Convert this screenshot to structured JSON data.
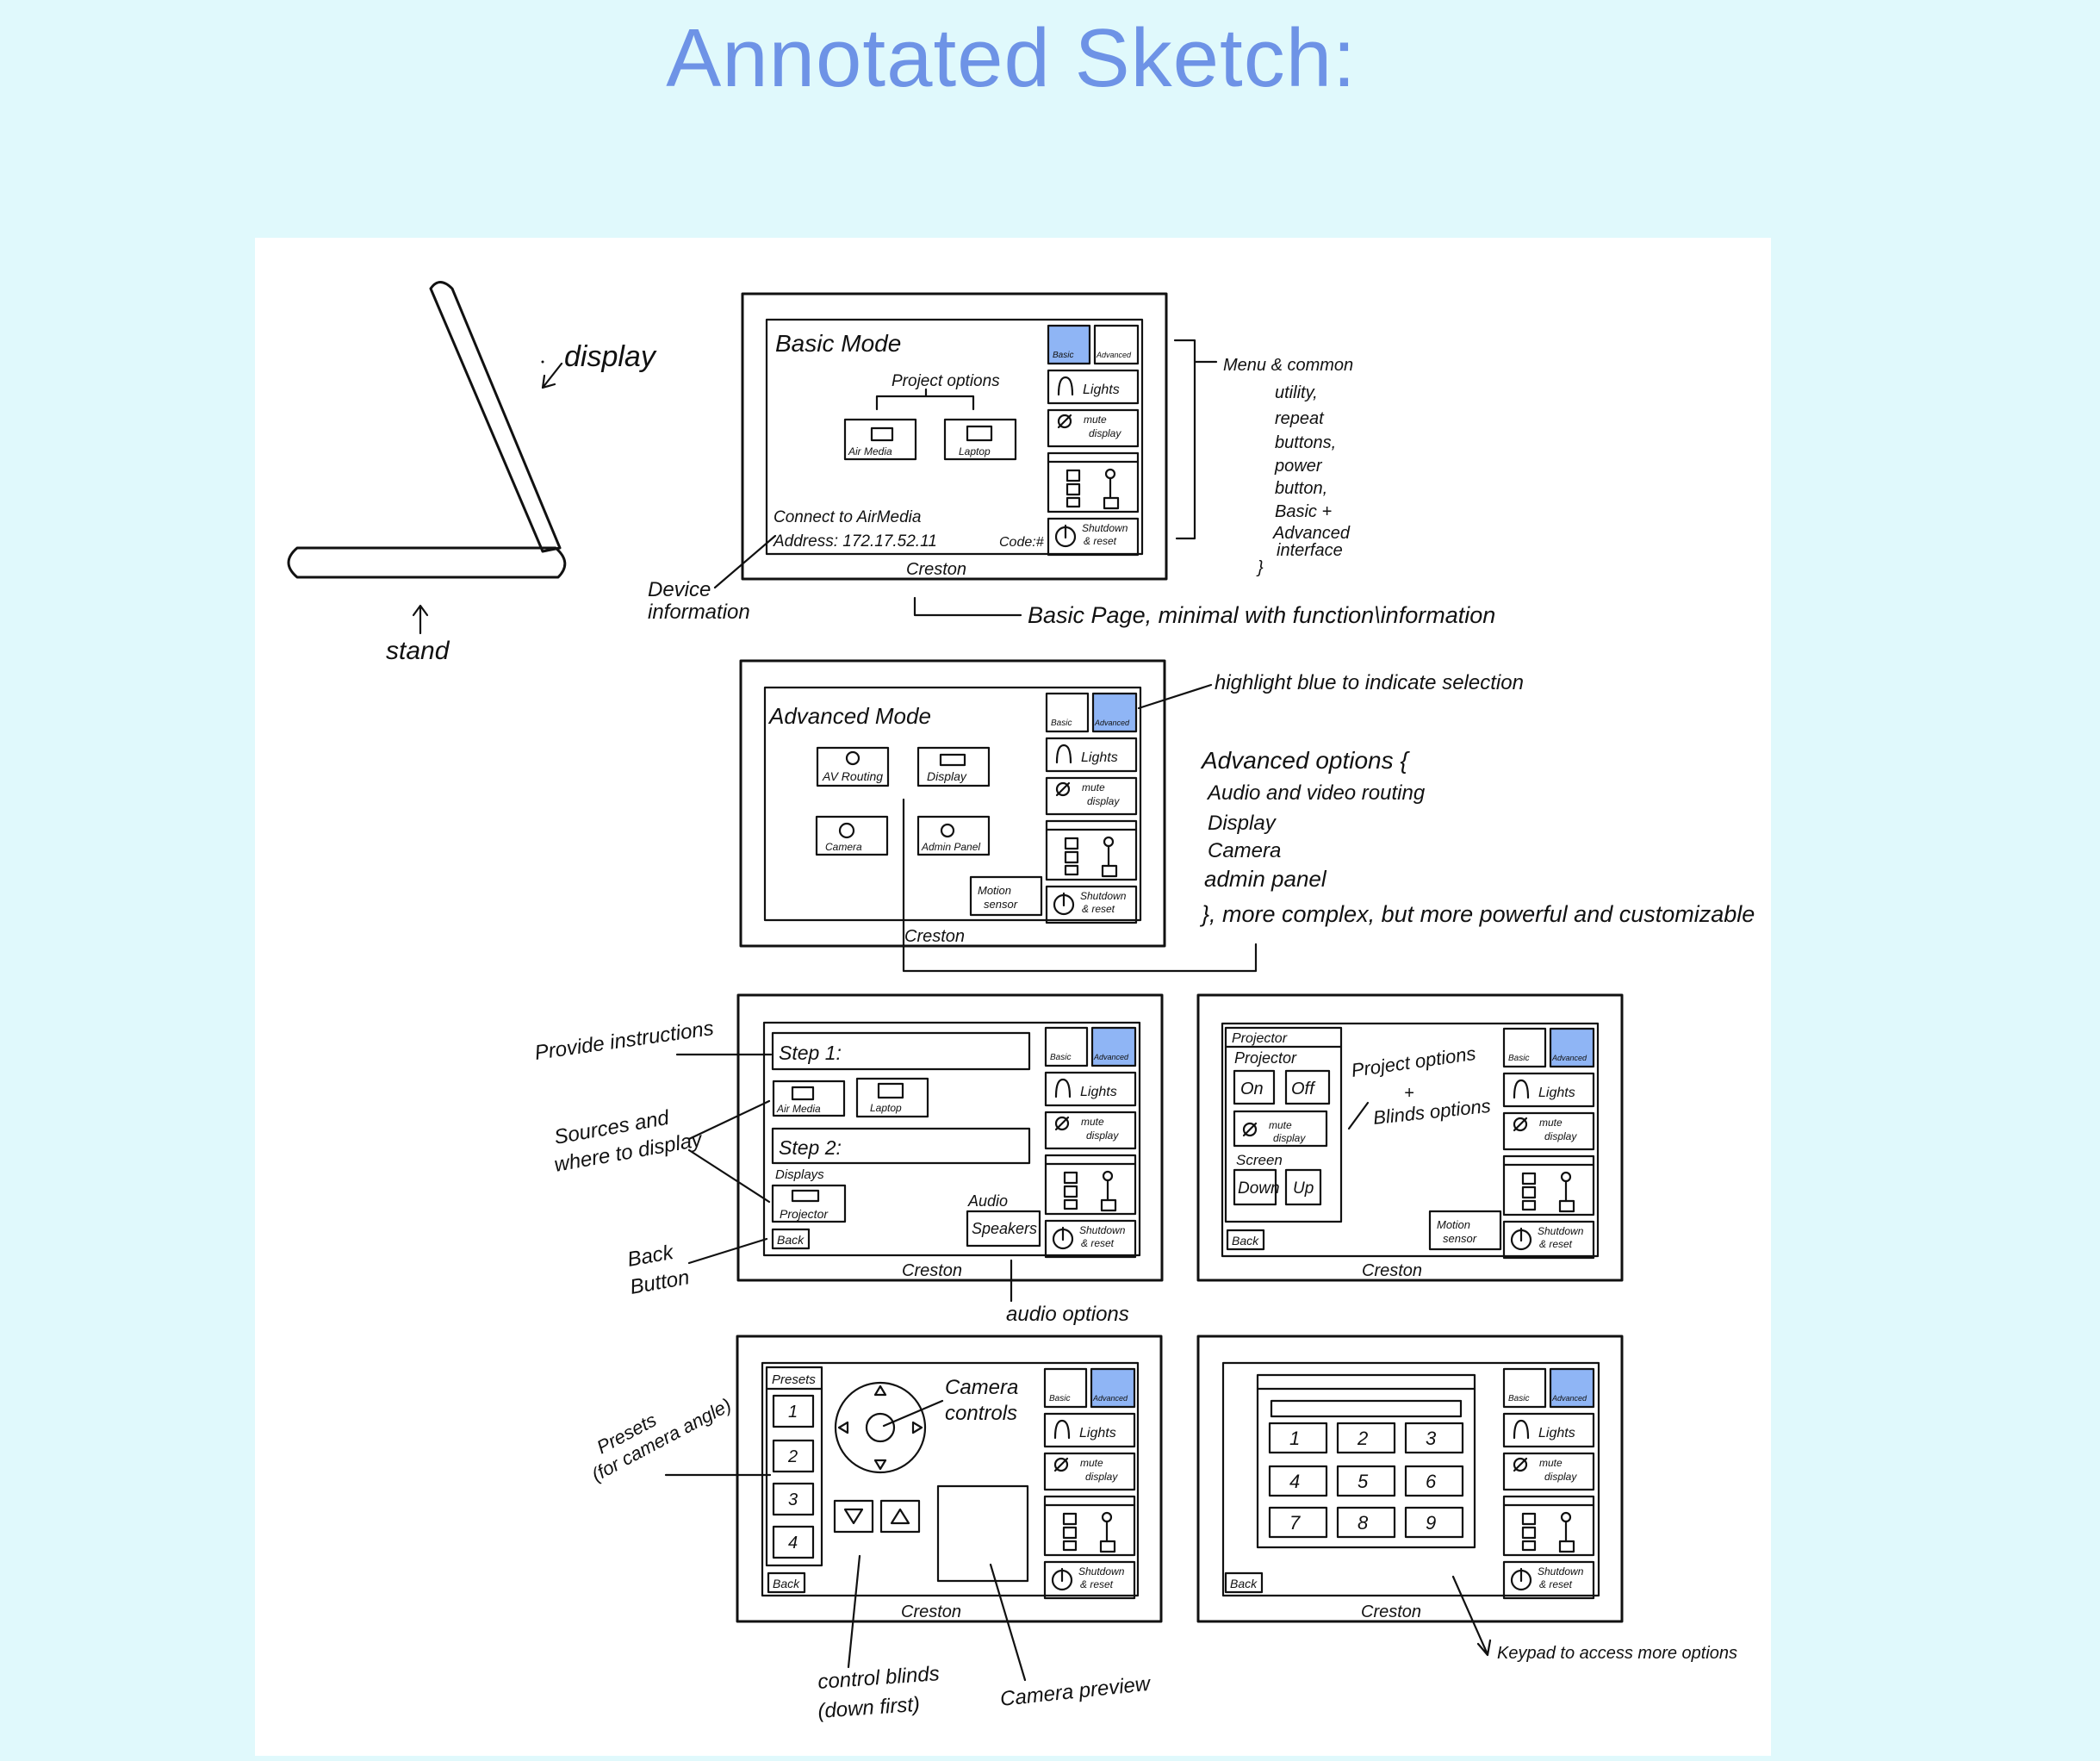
{
  "title": "Annotated Sketch:",
  "colors": {
    "background": "#e0f9fc",
    "title": "#6e93e6",
    "highlight": "#8fb5f5"
  },
  "stand_sketch": {
    "display": "display",
    "stand": "stand"
  },
  "common": {
    "basic": "Basic",
    "advanced": "Advanced",
    "lights": "Lights",
    "mute_display_1": "mute",
    "mute_display_2": "display",
    "shutdown_1": "Shutdown",
    "shutdown_2": "& reset",
    "brand": "Creston",
    "back": "Back",
    "motion_1": "Motion",
    "motion_2": "sensor"
  },
  "basic_mode": {
    "title": "Basic Mode",
    "project_options": "Project options",
    "airmedia": "Air Media",
    "laptop": "Laptop",
    "connect": "Connect to AirMedia",
    "address": "Address: 172.17.52.11",
    "code": "Code:#"
  },
  "advanced_mode": {
    "title": "Advanced Mode",
    "av_routing": "AV Routing",
    "display": "Display",
    "camera": "Camera",
    "admin_panel": "Admin Panel"
  },
  "routing_screen": {
    "step1": "Step 1:",
    "step2": "Step 2:",
    "displays": "Displays",
    "projector": "Projector",
    "audio": "Audio",
    "speakers": "Speakers"
  },
  "display_screen": {
    "projector_tab": "Projector",
    "projector": "Projector",
    "on": "On",
    "off": "Off",
    "screen": "Screen",
    "down": "Down",
    "up": "Up"
  },
  "camera_screen": {
    "presets": "Presets",
    "preset_numbers": [
      "1",
      "2",
      "3",
      "4"
    ]
  },
  "keypad_screen": {
    "keys": [
      "1",
      "2",
      "3",
      "4",
      "5",
      "6",
      "7",
      "8",
      "9"
    ]
  },
  "annotations": {
    "menu": [
      "Menu & common",
      "utility,",
      "repeat",
      "buttons,",
      "power",
      "button,",
      "Basic +",
      "Advanced",
      "interface",
      "}"
    ],
    "device_info": [
      "Device",
      "information"
    ],
    "basic_page": "Basic Page, minimal with function\\information",
    "highlight": "highlight blue to indicate selection",
    "advanced_options": [
      "Advanced options {",
      "Audio and video routing",
      "Display",
      "Camera",
      "admin panel",
      "}, more complex, but more powerful and customizable"
    ],
    "provide_instructions": "Provide instructions",
    "sources": [
      "Sources and",
      "where to display"
    ],
    "back_button": [
      "Back",
      "Button"
    ],
    "audio_options": "audio options",
    "project_blinds": [
      "Project options",
      "+",
      "Blinds options"
    ],
    "presets": [
      "Presets",
      "(for camera angle)"
    ],
    "camera_controls": [
      "Camera",
      "controls"
    ],
    "control_blinds": [
      "control blinds",
      "(down first)"
    ],
    "camera_preview": "Camera preview",
    "keypad": "Keypad to access more options"
  }
}
